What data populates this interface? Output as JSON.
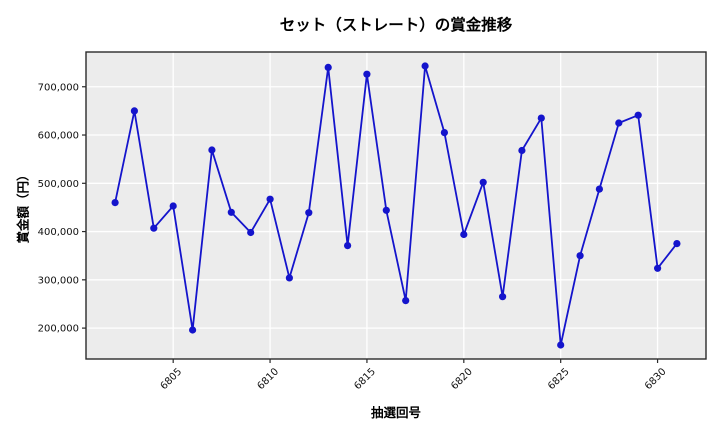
{
  "figure": {
    "title": "セット（ストレート）の賞金推移",
    "xlabel": "抽選回号",
    "ylabel": "賞金額（円）"
  },
  "chart_data": {
    "type": "line",
    "title": "セット（ストレート）の賞金推移",
    "xlabel": "抽選回号",
    "ylabel": "賞金額（円）",
    "x": [
      6802,
      6803,
      6804,
      6805,
      6806,
      6807,
      6808,
      6809,
      6810,
      6811,
      6812,
      6813,
      6814,
      6815,
      6816,
      6817,
      6818,
      6819,
      6820,
      6821,
      6822,
      6823,
      6824,
      6825,
      6826,
      6827,
      6828,
      6829,
      6830,
      6831
    ],
    "values": [
      460000,
      650000,
      407000,
      453000,
      196000,
      569000,
      440000,
      398000,
      467000,
      304000,
      439000,
      740000,
      371000,
      726000,
      444000,
      257000,
      743000,
      605000,
      394000,
      502000,
      265000,
      568000,
      635000,
      165000,
      350000,
      488000,
      625000,
      641000,
      324000,
      375000
    ],
    "xlim": [
      6800.5,
      6832.5
    ],
    "ylim": [
      136000,
      772000
    ],
    "xticks": [
      6805,
      6810,
      6815,
      6820,
      6825,
      6830
    ],
    "yticks": [
      200000,
      300000,
      400000,
      500000,
      600000,
      700000
    ],
    "grid": true,
    "legend": false,
    "line_color": "#1414CC",
    "marker": "circle",
    "plot_bg": "#ECECEC",
    "grid_color": "#FFFFFF",
    "spine_color": "#2A2A2A",
    "tick_label_color": "#111111"
  }
}
